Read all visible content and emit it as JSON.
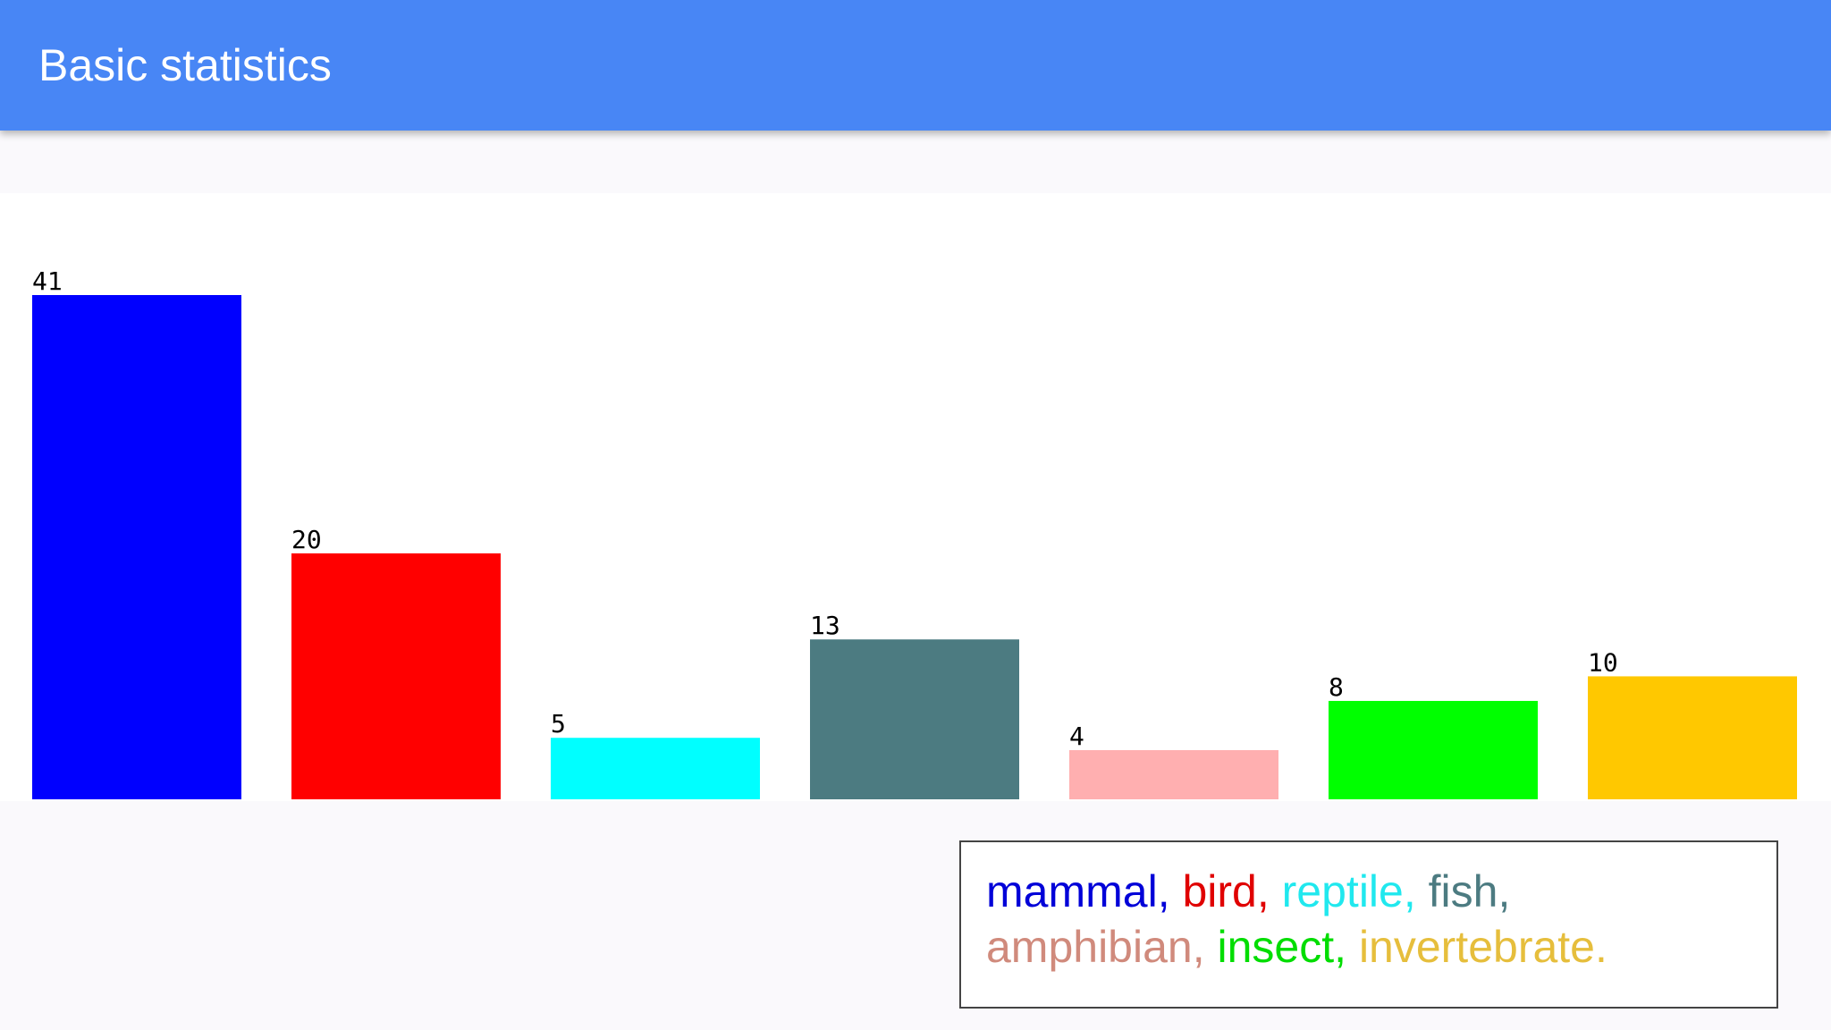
{
  "header": {
    "title": "Basic statistics"
  },
  "chart_data": {
    "type": "bar",
    "categories": [
      "mammal",
      "bird",
      "reptile",
      "fish",
      "amphibian",
      "insect",
      "invertebrate"
    ],
    "values": [
      41,
      20,
      5,
      13,
      4,
      8,
      10
    ],
    "colors": [
      "#0000ff",
      "#ff0000",
      "#00ffff",
      "#4c7b81",
      "#ffafb0",
      "#00ff00",
      "#ffc800"
    ],
    "ylim": [
      0,
      41
    ],
    "grid": false,
    "legend_position": "bottom-right"
  },
  "legend": {
    "lines": [
      [
        {
          "text": "mammal",
          "color": "#0000d8"
        },
        {
          "text": ", ",
          "color": "#0000d8"
        },
        {
          "text": "bird",
          "color": "#e00000"
        },
        {
          "text": ", ",
          "color": "#e00000"
        },
        {
          "text": "reptile",
          "color": "#20e8ee"
        },
        {
          "text": ", ",
          "color": "#20e8ee"
        },
        {
          "text": "fish",
          "color": "#4c7b81"
        },
        {
          "text": ",",
          "color": "#4c7b81"
        }
      ],
      [
        {
          "text": "amphibian",
          "color": "#d08a7c"
        },
        {
          "text": ", ",
          "color": "#d08a7c"
        },
        {
          "text": "insect",
          "color": "#00dd00"
        },
        {
          "text": ", ",
          "color": "#00dd00"
        },
        {
          "text": "invertebrate",
          "color": "#e6be3c"
        },
        {
          "text": ".",
          "color": "#e6be3c"
        }
      ]
    ]
  }
}
